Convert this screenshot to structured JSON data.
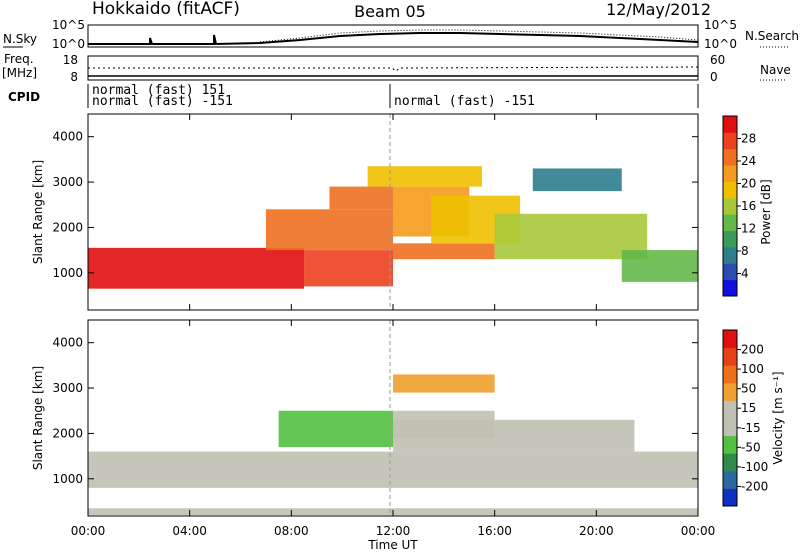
{
  "header": {
    "station": "Hokkaido (fitACF)",
    "beam": "Beam 05",
    "date": "12/May/2012"
  },
  "strips": {
    "nsky_label": "N.Sky",
    "nsky_ticks": [
      "10^5",
      "10^0"
    ],
    "nsearch_label": "N.Search",
    "nsearch_ticks": [
      "10^5",
      "10^0"
    ],
    "freq_label": "Freq.",
    "freq_unit": "[MHz]",
    "freq_ticks": [
      "18",
      "8"
    ],
    "nave_label": "Nave",
    "nave_ticks": [
      "60",
      "0"
    ],
    "cpid_label": "CPID",
    "cpid_entries": [
      "normal (fast) 151",
      "normal (fast) -151",
      "normal (fast) -151"
    ]
  },
  "chart_data": [
    {
      "type": "heatmap",
      "panel": "power",
      "ylabel": "Slant Range [km]",
      "xlabel": "Time UT",
      "xticks": [
        "00:00",
        "04:00",
        "08:00",
        "12:00",
        "16:00",
        "20:00",
        "00:00"
      ],
      "xlim_hours": [
        0,
        24
      ],
      "ylim": [
        180,
        4500
      ],
      "yticks": [
        "4000",
        "3000",
        "2000",
        "1000"
      ],
      "colorbar": {
        "label": "Power [dB]",
        "range": [
          0,
          30
        ],
        "ticks": [
          "28",
          "24",
          "20",
          "16",
          "12",
          "8",
          "4"
        ],
        "colors": [
          "#1010e0",
          "#2a4eb0",
          "#2e7d8c",
          "#3c9a5a",
          "#63b84a",
          "#a8c83a",
          "#f0c000",
          "#f59a1c",
          "#f07020",
          "#ec4020",
          "#e01010"
        ]
      },
      "regions": [
        {
          "t0": 0.0,
          "t1": 8.5,
          "r0": 650,
          "r1": 1550,
          "value": 28
        },
        {
          "t0": 8.5,
          "t1": 12.0,
          "r0": 700,
          "r1": 1500,
          "value": 27
        },
        {
          "t0": 7.0,
          "t1": 12.0,
          "r0": 1500,
          "r1": 2400,
          "value": 24
        },
        {
          "t0": 9.5,
          "t1": 12.0,
          "r0": 2400,
          "r1": 2900,
          "value": 22
        },
        {
          "t0": 12.0,
          "t1": 16.0,
          "r0": 1300,
          "r1": 1650,
          "value": 22
        },
        {
          "t0": 12.0,
          "t1": 15.0,
          "r0": 1800,
          "r1": 2900,
          "value": 20
        },
        {
          "t0": 13.5,
          "t1": 17.0,
          "r0": 1650,
          "r1": 2700,
          "value": 18
        },
        {
          "t0": 16.0,
          "t1": 22.0,
          "r0": 1300,
          "r1": 2300,
          "value": 14
        },
        {
          "t0": 21.0,
          "t1": 24.0,
          "r0": 800,
          "r1": 1500,
          "value": 12
        },
        {
          "t0": 11.0,
          "t1": 15.5,
          "r0": 2900,
          "r1": 3350,
          "value": 18
        },
        {
          "t0": 17.5,
          "t1": 21.0,
          "r0": 2800,
          "r1": 3300,
          "value": 8
        }
      ]
    },
    {
      "type": "heatmap",
      "panel": "velocity",
      "ylabel": "Slant Range [km]",
      "xlabel": "Time UT",
      "xticks": [
        "00:00",
        "04:00",
        "08:00",
        "12:00",
        "16:00",
        "20:00",
        "00:00"
      ],
      "xlim_hours": [
        0,
        24
      ],
      "ylim": [
        180,
        4500
      ],
      "yticks": [
        "4000",
        "3000",
        "2000",
        "1000"
      ],
      "colorbar": {
        "label": "Velocity [m s⁻¹]",
        "range": [
          -250,
          250
        ],
        "ticks": [
          "200",
          "100",
          "50",
          "15",
          "-15",
          "-50",
          "-100",
          "-200"
        ],
        "colors": [
          "#1030c0",
          "#2a6aa0",
          "#2f8a4c",
          "#52c040",
          "#c0c0b4",
          "#c0c0b4",
          "#f0a030",
          "#f07018",
          "#e84018",
          "#e01010"
        ]
      },
      "regions": [
        {
          "t0": 0.0,
          "t1": 24.0,
          "r0": 800,
          "r1": 1600,
          "value": 0
        },
        {
          "t0": 12.0,
          "t1": 21.5,
          "r0": 1600,
          "r1": 2300,
          "value": 0
        },
        {
          "t0": 7.5,
          "t1": 12.0,
          "r0": 1700,
          "r1": 2500,
          "value": -60
        },
        {
          "t0": 12.0,
          "t1": 16.0,
          "r0": 1900,
          "r1": 2500,
          "value": -40
        },
        {
          "t0": 12.0,
          "t1": 16.0,
          "r0": 2900,
          "r1": 3300,
          "value": 60
        },
        {
          "t0": 0.0,
          "t1": 24.0,
          "r0": 200,
          "r1": 350,
          "value": -30
        }
      ]
    }
  ]
}
